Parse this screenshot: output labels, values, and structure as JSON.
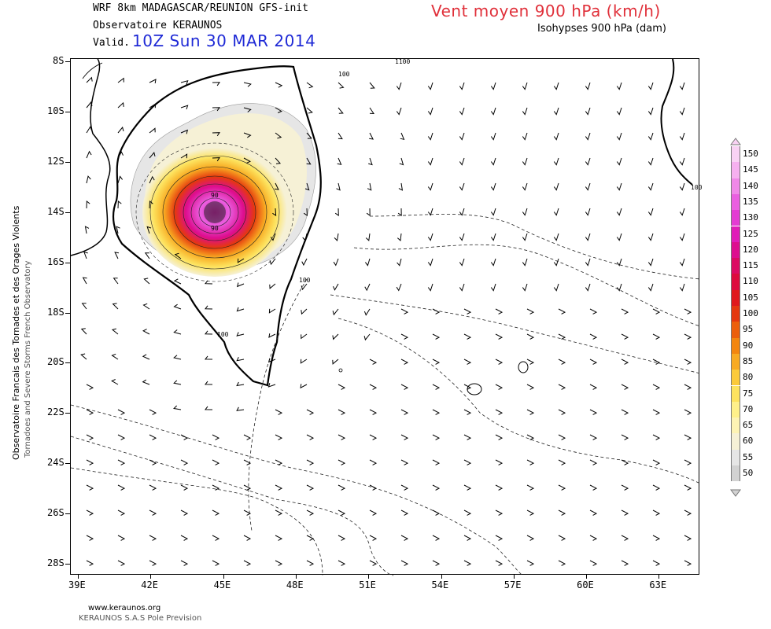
{
  "header": {
    "model_line": "WRF 8km MADAGASCAR/REUNION   GFS-init",
    "observatory": "Observatoire KERAUNOS",
    "valid_label": "Valid.",
    "valid_time": "10Z Sun 30 MAR 2014",
    "title": "Vent moyen 900 hPa (km/h)",
    "subtitle": "Isohypses 900 hPa (dam)"
  },
  "side_text": {
    "main": "Observatoire Francais des Tornades et des Orages Violents",
    "sub": "Tornadoes and Severe Storms French Observatory"
  },
  "footer": {
    "url": "www.keraunos.org",
    "company": "KERAUNOS S.A.S Pole Prevision"
  },
  "map": {
    "lat_labels": [
      "8S",
      "10S",
      "12S",
      "14S",
      "16S",
      "18S",
      "20S",
      "22S",
      "24S",
      "26S",
      "28S"
    ],
    "lon_labels": [
      "39E",
      "42E",
      "45E",
      "48E",
      "51E",
      "54E",
      "57E",
      "60E",
      "63E"
    ],
    "contour_labels": [
      "100",
      "100",
      "100",
      "100",
      "90",
      "90",
      "1100"
    ]
  },
  "legend": {
    "entries": [
      {
        "label": "150",
        "color": "#f9d2f4"
      },
      {
        "label": "145",
        "color": "#f6b0ef"
      },
      {
        "label": "140",
        "color": "#f088e8"
      },
      {
        "label": "135",
        "color": "#ea5fe0"
      },
      {
        "label": "130",
        "color": "#e43bd3"
      },
      {
        "label": "125",
        "color": "#e01cb8"
      },
      {
        "label": "120",
        "color": "#dd0d8f"
      },
      {
        "label": "115",
        "color": "#dc0a63"
      },
      {
        "label": "110",
        "color": "#dd0a3e"
      },
      {
        "label": "105",
        "color": "#e0191c"
      },
      {
        "label": "100",
        "color": "#e5380f"
      },
      {
        "label": "95",
        "color": "#ec5f0c"
      },
      {
        "label": "90",
        "color": "#f3860f"
      },
      {
        "label": "85",
        "color": "#f8aa22"
      },
      {
        "label": "80",
        "color": "#fbca3a"
      },
      {
        "label": "75",
        "color": "#fde35e"
      },
      {
        "label": "70",
        "color": "#fef08a"
      },
      {
        "label": "65",
        "color": "#fdf3b4"
      },
      {
        "label": "60",
        "color": "#f6f1d6"
      },
      {
        "label": "55",
        "color": "#e6e6e6"
      },
      {
        "label": "50",
        "color": "#d2d2d2"
      }
    ]
  }
}
